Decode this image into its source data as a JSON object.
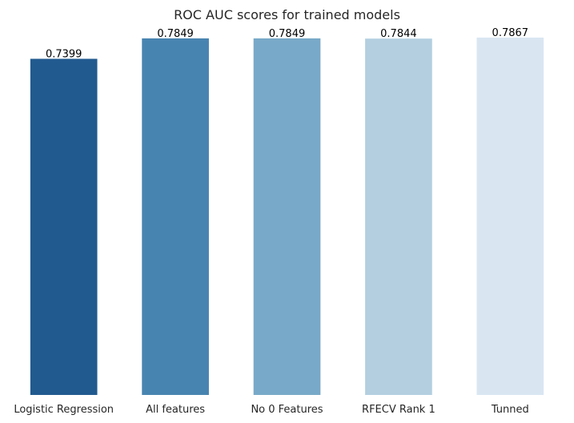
{
  "chart_data": {
    "type": "bar",
    "title": "ROC AUC scores for trained models",
    "xlabel": "",
    "ylabel": "",
    "categories": [
      "Logistic Regression",
      "All features",
      "No 0 Features",
      "RFECV Rank 1",
      "Tunned"
    ],
    "values": [
      0.7399,
      0.7849,
      0.7849,
      0.7844,
      0.7867
    ],
    "value_labels": [
      "0.7399",
      "0.7849",
      "0.7849",
      "0.7844",
      "0.7867"
    ],
    "colors": [
      "#215a8f",
      "#4884b0",
      "#78a9c8",
      "#b3cfe0",
      "#d9e6f2"
    ],
    "ylim": [
      0,
      0.79
    ],
    "grid": false,
    "legend": "none"
  }
}
